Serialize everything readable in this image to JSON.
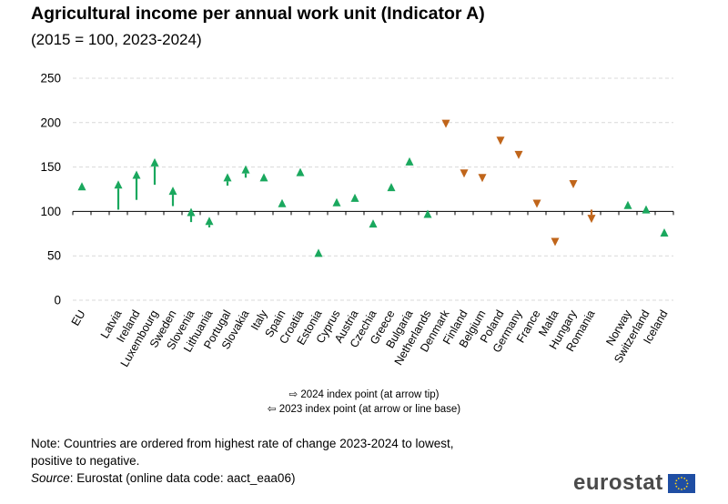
{
  "title": "Agricultural income per annual work unit (Indicator A)",
  "subtitle": "(2015 = 100, 2023-2024)",
  "legend": {
    "line1": "⇨ 2024 index point (at arrow tip)",
    "line2": "⇦ 2023 index point (at arrow or line base)"
  },
  "note": {
    "line1": "Note: Countries are ordered from highest rate of change 2023-2024 to lowest,",
    "line2": "positive to negative."
  },
  "source": {
    "label": "Source",
    "text": ": Eurostat (online data code: aact_eaa06)"
  },
  "logo": {
    "text": "eurostat",
    "flag": "eu-flag-icon"
  },
  "colors": {
    "up": "#1aa85e",
    "down": "#c0651a",
    "grid": "#d9d9d9",
    "axis": "#000000"
  },
  "chart_data": {
    "type": "scatter",
    "title": "Agricultural income per annual work unit (Indicator A)",
    "subtitle": "(2015 = 100, 2023-2024)",
    "ylim": [
      0,
      250
    ],
    "yticks": [
      0,
      50,
      100,
      150,
      200,
      250
    ],
    "grid": true,
    "baseline": 100,
    "series": [
      {
        "name": "2024 index point (at arrow tip)"
      },
      {
        "name": "2023 index point (at arrow or line base)"
      }
    ],
    "categories": [
      "EU",
      "Latvia",
      "Ireland",
      "Luxembourg",
      "Sweden",
      "Slovenia",
      "Lithuania",
      "Portugal",
      "Slovakia",
      "Italy",
      "Spain",
      "Croatia",
      "Estonia",
      "Cyprus",
      "Austria",
      "Czechia",
      "Greece",
      "Bulgaria",
      "Netherlands",
      "Denmark",
      "Finland",
      "Belgium",
      "Poland",
      "Germany",
      "France",
      "Malta",
      "Hungary",
      "Romania",
      "Norway",
      "Switzerland",
      "Iceland"
    ],
    "gap_before": [
      1,
      28
    ],
    "points": [
      {
        "country": "EU",
        "y2023": 132,
        "y2024": 133
      },
      {
        "country": "Latvia",
        "y2023": 102,
        "y2024": 135
      },
      {
        "country": "Ireland",
        "y2023": 113,
        "y2024": 146
      },
      {
        "country": "Luxembourg",
        "y2023": 130,
        "y2024": 160
      },
      {
        "country": "Sweden",
        "y2023": 106,
        "y2024": 128
      },
      {
        "country": "Slovenia",
        "y2023": 88,
        "y2024": 104
      },
      {
        "country": "Lithuania",
        "y2023": 82,
        "y2024": 94
      },
      {
        "country": "Portugal",
        "y2023": 129,
        "y2024": 143
      },
      {
        "country": "Slovakia",
        "y2023": 138,
        "y2024": 152
      },
      {
        "country": "Italy",
        "y2023": 135,
        "y2024": 143
      },
      {
        "country": "Spain",
        "y2023": 111,
        "y2024": 114
      },
      {
        "country": "Croatia",
        "y2023": 147,
        "y2024": 149
      },
      {
        "country": "Estonia",
        "y2023": 56,
        "y2024": 58
      },
      {
        "country": "Cyprus",
        "y2023": 114,
        "y2024": 115
      },
      {
        "country": "Austria",
        "y2023": 119,
        "y2024": 120
      },
      {
        "country": "Czechia",
        "y2023": 90,
        "y2024": 91
      },
      {
        "country": "Greece",
        "y2023": 131,
        "y2024": 132
      },
      {
        "country": "Bulgaria",
        "y2023": 160,
        "y2024": 161
      },
      {
        "country": "Netherlands",
        "y2023": 101,
        "y2024": 102
      },
      {
        "country": "Denmark",
        "y2023": 195,
        "y2024": 194
      },
      {
        "country": "Finland",
        "y2023": 139,
        "y2024": 138
      },
      {
        "country": "Belgium",
        "y2023": 134,
        "y2024": 133
      },
      {
        "country": "Poland",
        "y2023": 177,
        "y2024": 175
      },
      {
        "country": "Germany",
        "y2023": 161,
        "y2024": 159
      },
      {
        "country": "France",
        "y2023": 105,
        "y2024": 104
      },
      {
        "country": "Malta",
        "y2023": 62,
        "y2024": 61
      },
      {
        "country": "Hungary",
        "y2023": 133,
        "y2024": 126
      },
      {
        "country": "Romania",
        "y2023": 102,
        "y2024": 87
      },
      {
        "country": "Norway",
        "y2023": 105,
        "y2024": 112
      },
      {
        "country": "Switzerland",
        "y2023": 106,
        "y2024": 107
      },
      {
        "country": "Iceland",
        "y2023": 80,
        "y2024": 81
      }
    ]
  }
}
